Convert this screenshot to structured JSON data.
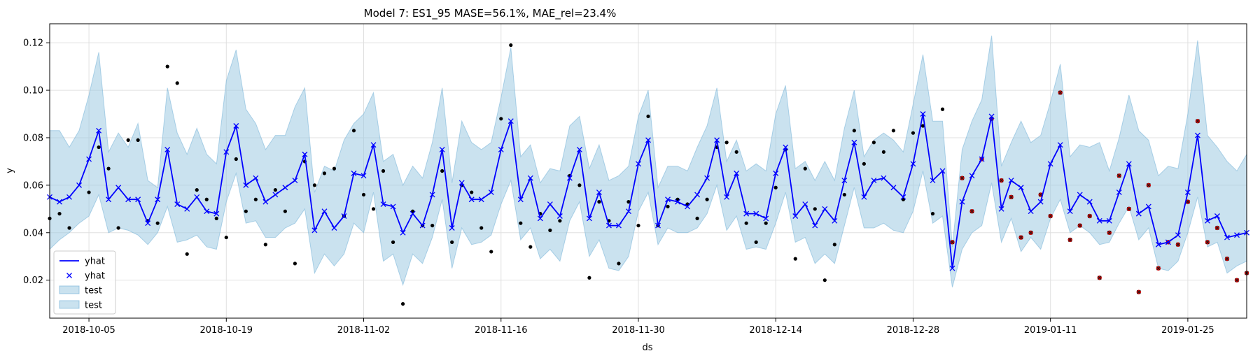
{
  "chart_data": {
    "type": "line",
    "title": "Model 7: ES1_95 MASE=56.1%, MAE_rel=23.4%",
    "xlabel": "ds",
    "ylabel": "y",
    "x_start": "2018-10-01",
    "x_step_days": 1,
    "xlim": [
      "2018-10-01",
      "2019-01-31"
    ],
    "ylim": [
      0.004,
      0.128
    ],
    "x_ticks": [
      "2018-10-05",
      "2018-10-19",
      "2018-11-02",
      "2018-11-16",
      "2018-11-30",
      "2018-12-14",
      "2018-12-28",
      "2019-01-11",
      "2019-01-25"
    ],
    "y_ticks": [
      0.02,
      0.04,
      0.06,
      0.08,
      0.1,
      0.12
    ],
    "y_tick_labels": [
      "0.02",
      "0.04",
      "0.06",
      "0.08",
      "0.10",
      "0.12"
    ],
    "grid": true,
    "legend_position": "lower-left",
    "legend": [
      {
        "label": "yhat",
        "kind": "line"
      },
      {
        "label": "yhat",
        "kind": "marker"
      },
      {
        "label": "test",
        "kind": "patch"
      },
      {
        "label": "test",
        "kind": "patch"
      }
    ],
    "colors": {
      "yhat": "#0000ff",
      "band": "#9ecae1",
      "band_edge": "#6baed6",
      "actual": "#000000",
      "test_point": "#cc0000",
      "grid": "#e0e0e0"
    },
    "series": [
      {
        "name": "yhat",
        "role": "forecast",
        "values": [
          0.055,
          0.053,
          0.055,
          0.06,
          0.071,
          0.083,
          0.054,
          0.059,
          0.054,
          0.054,
          0.044,
          0.054,
          0.075,
          0.052,
          0.05,
          0.055,
          0.049,
          0.048,
          0.074,
          0.085,
          0.06,
          0.063,
          0.053,
          0.056,
          0.059,
          0.062,
          0.073,
          0.041,
          0.049,
          0.042,
          0.047,
          0.065,
          0.064,
          0.077,
          0.052,
          0.051,
          0.04,
          0.048,
          0.043,
          0.056,
          0.075,
          0.042,
          0.061,
          0.054,
          0.054,
          0.057,
          0.075,
          0.087,
          0.054,
          0.063,
          0.046,
          0.052,
          0.047,
          0.063,
          0.075,
          0.046,
          0.057,
          0.043,
          0.043,
          0.049,
          0.069,
          0.079,
          0.043,
          0.054,
          0.053,
          0.051,
          0.056,
          0.063,
          0.079,
          0.055,
          0.065,
          0.048,
          0.048,
          0.046,
          0.065,
          0.076,
          0.047,
          0.052,
          0.043,
          0.05,
          0.045,
          0.062,
          0.078,
          0.055,
          0.062,
          0.063,
          0.059,
          0.055,
          0.069,
          0.09,
          0.062,
          0.066,
          0.025,
          0.053,
          0.064,
          0.071,
          0.089,
          0.05,
          0.062,
          0.059,
          0.049,
          0.053,
          0.069,
          0.077,
          0.049,
          0.056,
          0.053,
          0.045,
          0.045,
          0.057,
          0.069,
          0.048,
          0.051,
          0.035,
          0.036,
          0.039,
          0.057,
          0.081,
          0.045,
          0.047,
          0.038,
          0.039,
          0.04
        ]
      },
      {
        "name": "test",
        "role": "interval_lower",
        "values": [
          0.033,
          0.037,
          0.04,
          0.044,
          0.047,
          0.056,
          0.04,
          0.042,
          0.041,
          0.039,
          0.035,
          0.04,
          0.051,
          0.036,
          0.037,
          0.039,
          0.034,
          0.033,
          0.053,
          0.065,
          0.044,
          0.045,
          0.038,
          0.038,
          0.042,
          0.044,
          0.05,
          0.023,
          0.031,
          0.026,
          0.031,
          0.044,
          0.04,
          0.057,
          0.028,
          0.031,
          0.018,
          0.031,
          0.027,
          0.038,
          0.054,
          0.025,
          0.042,
          0.035,
          0.036,
          0.039,
          0.052,
          0.062,
          0.037,
          0.042,
          0.029,
          0.033,
          0.028,
          0.045,
          0.053,
          0.03,
          0.037,
          0.025,
          0.024,
          0.03,
          0.049,
          0.057,
          0.035,
          0.042,
          0.04,
          0.04,
          0.042,
          0.048,
          0.06,
          0.041,
          0.047,
          0.033,
          0.034,
          0.033,
          0.044,
          0.057,
          0.036,
          0.038,
          0.027,
          0.031,
          0.027,
          0.043,
          0.059,
          0.042,
          0.042,
          0.044,
          0.041,
          0.04,
          0.049,
          0.066,
          0.044,
          0.047,
          0.017,
          0.033,
          0.04,
          0.043,
          0.061,
          0.036,
          0.046,
          0.032,
          0.038,
          0.033,
          0.046,
          0.054,
          0.04,
          0.043,
          0.04,
          0.035,
          0.036,
          0.044,
          0.051,
          0.037,
          0.042,
          0.025,
          0.024,
          0.028,
          0.04,
          0.055,
          0.034,
          0.036,
          0.023,
          0.026,
          0.028
        ]
      },
      {
        "name": "test",
        "role": "interval_upper",
        "values": [
          0.083,
          0.083,
          0.076,
          0.083,
          0.098,
          0.116,
          0.074,
          0.082,
          0.076,
          0.086,
          0.062,
          0.059,
          0.101,
          0.082,
          0.073,
          0.084,
          0.073,
          0.069,
          0.104,
          0.117,
          0.092,
          0.086,
          0.075,
          0.081,
          0.081,
          0.093,
          0.101,
          0.057,
          0.068,
          0.066,
          0.079,
          0.086,
          0.09,
          0.099,
          0.07,
          0.073,
          0.06,
          0.068,
          0.063,
          0.078,
          0.101,
          0.061,
          0.087,
          0.078,
          0.075,
          0.078,
          0.097,
          0.118,
          0.072,
          0.077,
          0.061,
          0.067,
          0.066,
          0.085,
          0.089,
          0.067,
          0.077,
          0.062,
          0.064,
          0.068,
          0.089,
          0.1,
          0.059,
          0.068,
          0.068,
          0.066,
          0.076,
          0.085,
          0.101,
          0.07,
          0.079,
          0.066,
          0.069,
          0.066,
          0.09,
          0.102,
          0.067,
          0.07,
          0.062,
          0.07,
          0.062,
          0.084,
          0.1,
          0.072,
          0.079,
          0.082,
          0.079,
          0.074,
          0.094,
          0.115,
          0.087,
          0.087,
          0.034,
          0.075,
          0.087,
          0.096,
          0.123,
          0.068,
          0.078,
          0.087,
          0.078,
          0.081,
          0.095,
          0.111,
          0.072,
          0.077,
          0.076,
          0.078,
          0.066,
          0.08,
          0.098,
          0.083,
          0.079,
          0.064,
          0.068,
          0.067,
          0.09,
          0.121,
          0.081,
          0.076,
          0.07,
          0.066,
          0.073
        ]
      },
      {
        "name": "actual",
        "role": "observed",
        "values": [
          0.046,
          0.048,
          0.042,
          null,
          0.057,
          0.076,
          0.067,
          0.042,
          0.079,
          0.079,
          0.045,
          0.044,
          0.11,
          0.103,
          0.031,
          0.058,
          0.054,
          0.046,
          0.038,
          0.071,
          0.049,
          0.054,
          0.035,
          0.058,
          0.049,
          0.027,
          0.07,
          0.06,
          0.065,
          0.067,
          0.047,
          0.083,
          0.056,
          0.05,
          0.066,
          0.036,
          0.01,
          0.049,
          0.043,
          0.043,
          0.066,
          0.036,
          0.06,
          0.057,
          0.042,
          0.032,
          0.088,
          0.119,
          0.044,
          0.034,
          0.048,
          0.041,
          0.045,
          0.064,
          0.06,
          0.021,
          0.053,
          0.045,
          0.027,
          0.053,
          0.043,
          0.089,
          0.043,
          0.051,
          0.054,
          0.052,
          0.046,
          0.054,
          0.076,
          0.078,
          0.074,
          0.044,
          0.036,
          0.044,
          0.059,
          0.075,
          0.029,
          0.067,
          0.05,
          0.02,
          0.035,
          0.056,
          0.083,
          0.069,
          0.078,
          0.074,
          0.083,
          0.054,
          0.082,
          0.085,
          0.048,
          0.092,
          0.036,
          0.063,
          0.049,
          0.071,
          0.088,
          0.062,
          0.055,
          0.038,
          0.04,
          0.056,
          0.047,
          0.099,
          0.037,
          0.043,
          0.047,
          0.021,
          0.04,
          0.064,
          0.05,
          0.015,
          0.06,
          0.025,
          0.036,
          0.035,
          0.053,
          0.087,
          0.036,
          0.042,
          0.029,
          0.02,
          0.023
        ]
      }
    ],
    "test_start": "2019-01-01"
  }
}
